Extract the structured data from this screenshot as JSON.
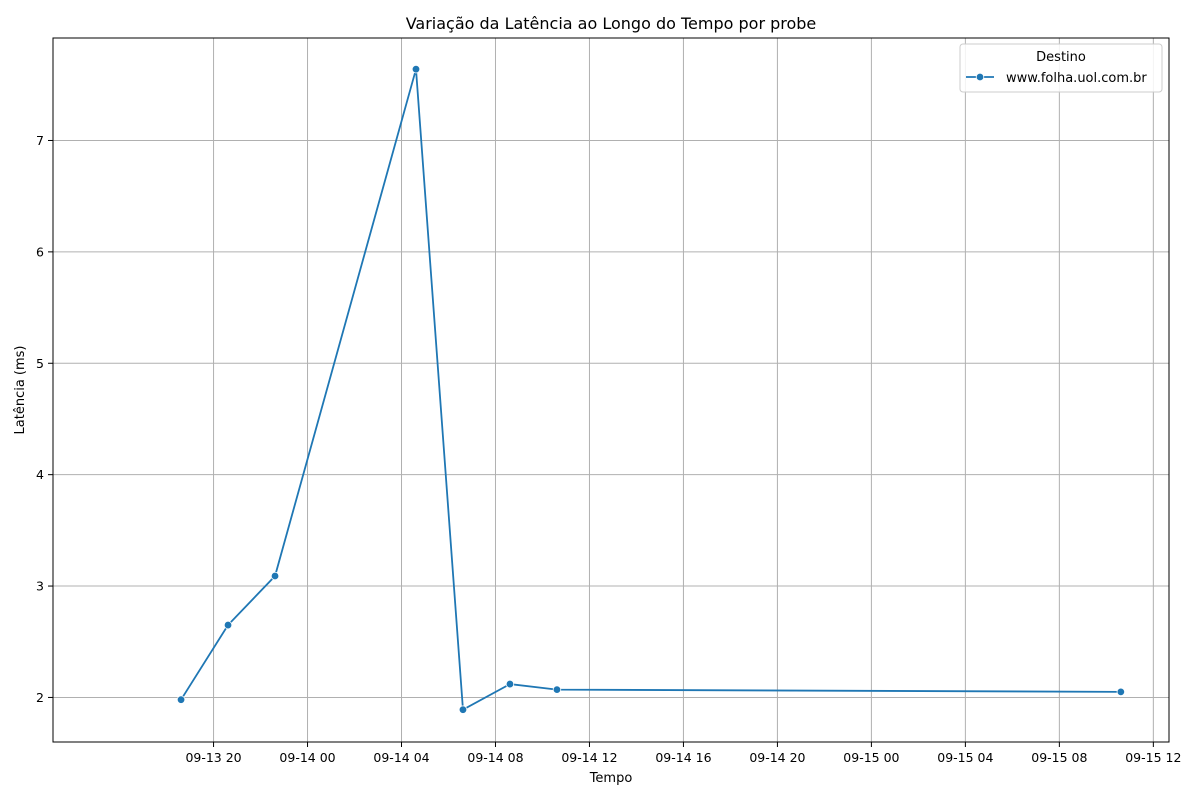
{
  "chart_data": {
    "type": "line",
    "title": "Variação da Latência ao Longo do Tempo por probe",
    "xlabel": "Tempo",
    "ylabel": "Latência (ms)",
    "x_axis_type": "datetime",
    "xlim": [
      "2023-09-13T13:10:00",
      "2023-09-15T12:40:00"
    ],
    "ylim": [
      1.6,
      7.92
    ],
    "x_ticks": [
      {
        "value": "2023-09-13T20:00:00",
        "label": "09-13 20"
      },
      {
        "value": "2023-09-14T00:00:00",
        "label": "09-14 00"
      },
      {
        "value": "2023-09-14T04:00:00",
        "label": "09-14 04"
      },
      {
        "value": "2023-09-14T08:00:00",
        "label": "09-14 08"
      },
      {
        "value": "2023-09-14T12:00:00",
        "label": "09-14 12"
      },
      {
        "value": "2023-09-14T16:00:00",
        "label": "09-14 16"
      },
      {
        "value": "2023-09-14T20:00:00",
        "label": "09-14 20"
      },
      {
        "value": "2023-09-15T00:00:00",
        "label": "09-15 00"
      },
      {
        "value": "2023-09-15T04:00:00",
        "label": "09-15 04"
      },
      {
        "value": "2023-09-15T08:00:00",
        "label": "09-15 08"
      },
      {
        "value": "2023-09-15T12:00:00",
        "label": "09-15 12"
      }
    ],
    "y_ticks": [
      2,
      3,
      4,
      5,
      6,
      7
    ],
    "grid": true,
    "legend": {
      "title": "Destino",
      "placement": "top-right"
    },
    "series": [
      {
        "name": "www.folha.uol.com.br",
        "color": "#1f77b4",
        "marker": "circle",
        "points": [
          {
            "x": "2023-09-13T18:37:00",
            "y": 1.98
          },
          {
            "x": "2023-09-13T20:37:00",
            "y": 2.65
          },
          {
            "x": "2023-09-13T22:37:00",
            "y": 3.09
          },
          {
            "x": "2023-09-14T04:37:00",
            "y": 7.64
          },
          {
            "x": "2023-09-14T06:37:00",
            "y": 1.89
          },
          {
            "x": "2023-09-14T08:37:00",
            "y": 2.12
          },
          {
            "x": "2023-09-14T10:37:00",
            "y": 2.07
          },
          {
            "x": "2023-09-15T10:37:00",
            "y": 2.05
          }
        ]
      }
    ]
  }
}
